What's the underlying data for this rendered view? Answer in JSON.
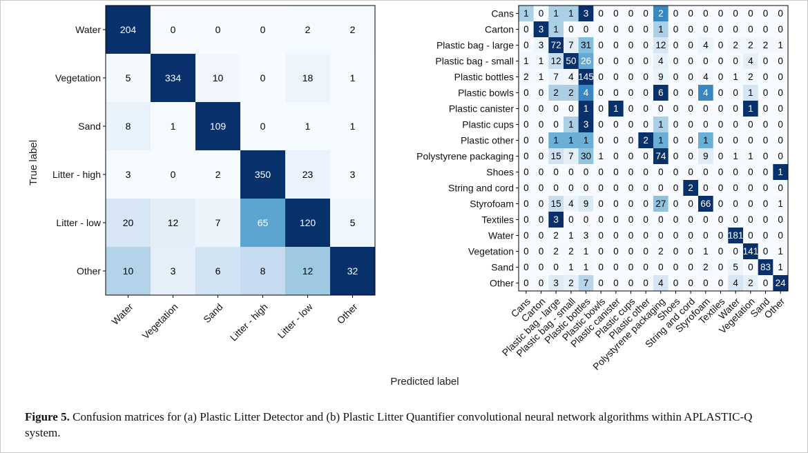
{
  "figure": {
    "caption_label": "Figure 5.",
    "caption_text": " Confusion matrices for (a) Plastic Litter Detector and (b) Plastic Litter Quantifier convolutional neural network algorithms within APLASTIC-Q system."
  },
  "chart_data": [
    {
      "type": "heatmap",
      "title": "",
      "xlabel": "Predicted label",
      "ylabel": "True label",
      "colormap": "Blues",
      "colors": {
        "low": "#f7fbff",
        "high": "#08306b",
        "text_light": "#ffffff",
        "text_dark": "#000000"
      },
      "legend": "none",
      "grid": false,
      "rows": [
        "Water",
        "Vegetation",
        "Sand",
        "Litter - high",
        "Litter - low",
        "Other"
      ],
      "cols": [
        "Water",
        "Vegetation",
        "Sand",
        "Litter - high",
        "Litter - low",
        "Other"
      ],
      "values": [
        [
          204,
          0,
          0,
          0,
          2,
          2
        ],
        [
          5,
          334,
          10,
          0,
          18,
          1
        ],
        [
          8,
          1,
          109,
          0,
          1,
          1
        ],
        [
          3,
          0,
          2,
          350,
          23,
          3
        ],
        [
          20,
          12,
          7,
          65,
          120,
          5
        ],
        [
          10,
          3,
          6,
          8,
          12,
          32
        ]
      ]
    },
    {
      "type": "heatmap",
      "title": "",
      "xlabel": "",
      "ylabel": "",
      "colormap": "Blues",
      "colors": {
        "low": "#f7fbff",
        "high": "#08306b",
        "text_light": "#ffffff",
        "text_dark": "#000000"
      },
      "legend": "none",
      "grid": false,
      "rows": [
        "Cans",
        "Carton",
        "Plastic bag - large",
        "Plastic bag - small",
        "Plastic bottles",
        "Plastic bowls",
        "Plastic canister",
        "Plastic cups",
        "Plastic other",
        "Polystyrene packaging",
        "Shoes",
        "String and cord",
        "Styrofoam",
        "Textiles",
        "Water",
        "Vegetation",
        "Sand",
        "Other"
      ],
      "cols": [
        "Cans",
        "Carton",
        "Plastic bag - large",
        "Plastic bag - small",
        "Plastic bottles",
        "Plastic bowls",
        "Plastic canister",
        "Plastic cups",
        "Plastic other",
        "Polystyrene packaging",
        "Shoes",
        "String and cord",
        "Styrofoam",
        "Textiles",
        "Water",
        "Vegetation",
        "Sand",
        "Other"
      ],
      "values": [
        [
          1,
          0,
          1,
          1,
          3,
          0,
          0,
          0,
          0,
          2,
          0,
          0,
          0,
          0,
          0,
          0,
          0,
          0
        ],
        [
          0,
          3,
          1,
          0,
          0,
          0,
          0,
          0,
          0,
          1,
          0,
          0,
          0,
          0,
          0,
          0,
          0,
          0
        ],
        [
          0,
          3,
          72,
          7,
          31,
          0,
          0,
          0,
          0,
          12,
          0,
          0,
          4,
          0,
          2,
          2,
          2,
          1
        ],
        [
          1,
          1,
          12,
          50,
          26,
          0,
          0,
          0,
          0,
          4,
          0,
          0,
          0,
          0,
          0,
          4,
          0,
          0
        ],
        [
          2,
          1,
          7,
          4,
          145,
          0,
          0,
          0,
          0,
          9,
          0,
          0,
          4,
          0,
          1,
          2,
          0,
          0
        ],
        [
          0,
          0,
          2,
          2,
          4,
          0,
          0,
          0,
          0,
          6,
          0,
          0,
          4,
          0,
          0,
          1,
          0,
          0
        ],
        [
          0,
          0,
          0,
          0,
          1,
          0,
          1,
          0,
          0,
          0,
          0,
          0,
          0,
          0,
          0,
          1,
          0,
          0
        ],
        [
          0,
          0,
          0,
          1,
          3,
          0,
          0,
          0,
          0,
          1,
          0,
          0,
          0,
          0,
          0,
          0,
          0,
          0
        ],
        [
          0,
          0,
          1,
          1,
          1,
          0,
          0,
          0,
          2,
          1,
          0,
          0,
          1,
          0,
          0,
          0,
          0,
          0
        ],
        [
          0,
          0,
          15,
          7,
          30,
          1,
          0,
          0,
          0,
          74,
          0,
          0,
          9,
          0,
          1,
          1,
          0,
          0
        ],
        [
          0,
          0,
          0,
          0,
          0,
          0,
          0,
          0,
          0,
          0,
          0,
          0,
          0,
          0,
          0,
          0,
          0,
          1
        ],
        [
          0,
          0,
          0,
          0,
          0,
          0,
          0,
          0,
          0,
          0,
          0,
          2,
          0,
          0,
          0,
          0,
          0,
          0
        ],
        [
          0,
          0,
          15,
          4,
          9,
          0,
          0,
          0,
          0,
          27,
          0,
          0,
          66,
          0,
          0,
          0,
          0,
          1
        ],
        [
          0,
          0,
          3,
          0,
          0,
          0,
          0,
          0,
          0,
          0,
          0,
          0,
          0,
          0,
          0,
          0,
          0,
          0
        ],
        [
          0,
          0,
          2,
          1,
          3,
          0,
          0,
          0,
          0,
          0,
          0,
          0,
          0,
          0,
          181,
          0,
          0,
          0
        ],
        [
          0,
          0,
          2,
          2,
          1,
          0,
          0,
          0,
          0,
          2,
          0,
          0,
          1,
          0,
          0,
          141,
          0,
          1
        ],
        [
          0,
          0,
          0,
          1,
          1,
          0,
          0,
          0,
          0,
          0,
          0,
          0,
          2,
          0,
          5,
          0,
          83,
          1
        ],
        [
          0,
          0,
          3,
          2,
          7,
          0,
          0,
          0,
          0,
          4,
          0,
          0,
          0,
          0,
          4,
          2,
          0,
          24
        ]
      ]
    }
  ]
}
